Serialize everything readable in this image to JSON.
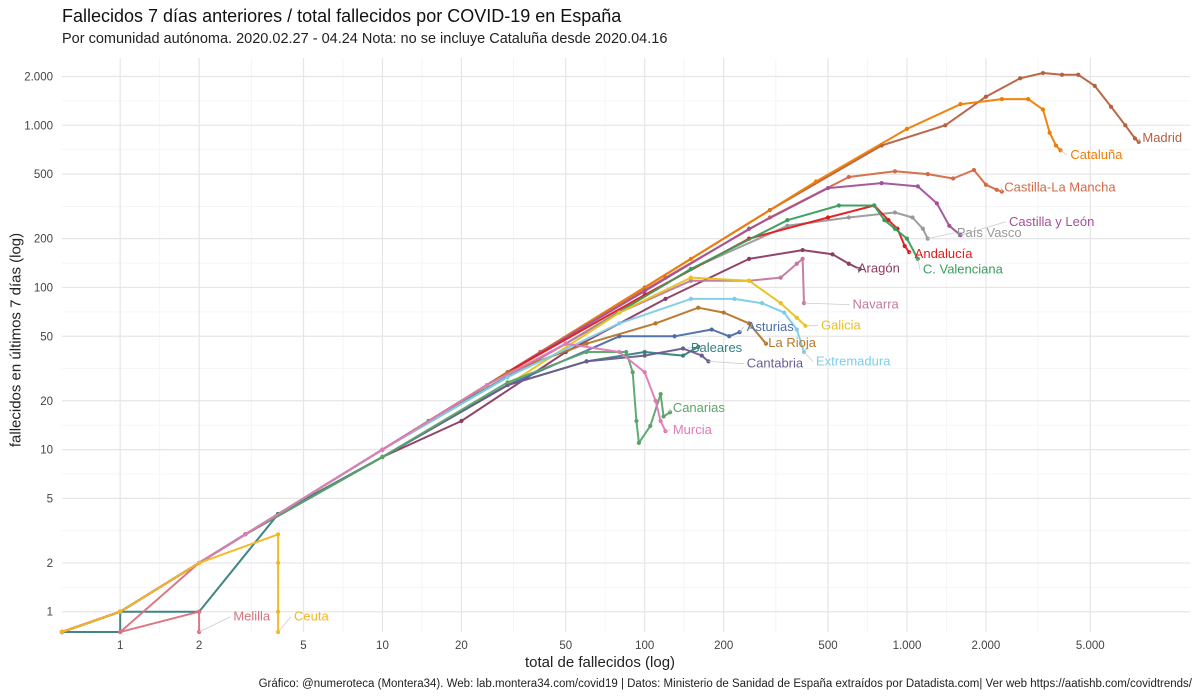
{
  "title": "Fallecidos 7 días anteriores / total fallecidos por COVID-19 en España",
  "subtitle": "Por comunidad autónoma. 2020.02.27 - 04.24 Nota: no se incluye Cataluña desde 2020.04.16",
  "caption": "Gráfico: @numeroteca (Montera34). Web: lab.montera34.com/covid19 | Datos: Ministerio de Sanidad de España extraídos por Datadista.com| Ver web https://aatishb.com/covidtrends/",
  "chart_data": {
    "type": "line",
    "title": "Fallecidos 7 días anteriores / total fallecidos por COVID-19 en España",
    "subtitle": "Por comunidad autónoma. 2020.02.27 - 04.24 Nota: no se incluye Cataluña desde 2020.04.16",
    "xlabel": "total de fallecidos (log)",
    "ylabel": "fallecidos en últimos 7 días (log)",
    "x_scale": "log",
    "y_scale": "log",
    "xlim": [
      0.6,
      12000
    ],
    "ylim": [
      0.75,
      2600
    ],
    "x_ticks": [
      1,
      2,
      5,
      10,
      20,
      50,
      100,
      200,
      500,
      1000,
      2000,
      5000
    ],
    "x_tick_labels": [
      "1",
      "2",
      "5",
      "10",
      "20",
      "50",
      "100",
      "200",
      "500",
      "1.000",
      "2.000",
      "5.000"
    ],
    "y_ticks": [
      1,
      2,
      5,
      10,
      20,
      50,
      100,
      200,
      500,
      1000,
      2000
    ],
    "y_tick_labels": [
      "1",
      "2",
      "5",
      "10",
      "20",
      "50",
      "100",
      "200",
      "500",
      "1.000",
      "2.000"
    ],
    "grid": true,
    "legend": "direct labels at line ends",
    "series": [
      {
        "name": "Madrid",
        "color": "#b5603f",
        "label_at": [
          7900,
          790
        ],
        "points": [
          [
            0.6,
            0.75
          ],
          [
            1,
            1
          ],
          [
            2,
            2
          ],
          [
            4,
            4
          ],
          [
            10,
            10
          ],
          [
            30,
            30
          ],
          [
            100,
            100
          ],
          [
            300,
            300
          ],
          [
            800,
            750
          ],
          [
            1400,
            1000
          ],
          [
            2000,
            1500
          ],
          [
            2700,
            1950
          ],
          [
            3300,
            2100
          ],
          [
            3900,
            2050
          ],
          [
            4500,
            2050
          ],
          [
            5200,
            1750
          ],
          [
            6000,
            1300
          ],
          [
            6800,
            1000
          ],
          [
            7400,
            830
          ],
          [
            7650,
            790
          ]
        ]
      },
      {
        "name": "Cataluña",
        "color": "#f07d02",
        "label_at": [
          4200,
          620
        ],
        "points": [
          [
            0.6,
            0.75
          ],
          [
            1,
            1
          ],
          [
            2,
            2
          ],
          [
            4,
            4
          ],
          [
            10,
            10
          ],
          [
            40,
            40
          ],
          [
            150,
            150
          ],
          [
            450,
            450
          ],
          [
            1000,
            950
          ],
          [
            1600,
            1350
          ],
          [
            2300,
            1450
          ],
          [
            2900,
            1450
          ],
          [
            3300,
            1250
          ],
          [
            3500,
            900
          ],
          [
            3700,
            750
          ],
          [
            3850,
            700
          ]
        ]
      },
      {
        "name": "Castilla-La Mancha",
        "color": "#d36a47",
        "label_at": [
          2350,
          390
        ],
        "points": [
          [
            0.6,
            0.75
          ],
          [
            1,
            1
          ],
          [
            3,
            3
          ],
          [
            10,
            10
          ],
          [
            40,
            40
          ],
          [
            120,
            115
          ],
          [
            300,
            270
          ],
          [
            600,
            480
          ],
          [
            900,
            520
          ],
          [
            1200,
            500
          ],
          [
            1500,
            470
          ],
          [
            1800,
            530
          ],
          [
            2000,
            430
          ],
          [
            2200,
            400
          ],
          [
            2300,
            390
          ]
        ]
      },
      {
        "name": "Castilla y León",
        "color": "#a2519b",
        "label_at": [
          2450,
          240
        ],
        "points": [
          [
            0.6,
            0.75
          ],
          [
            1,
            1
          ],
          [
            3,
            3
          ],
          [
            10,
            10
          ],
          [
            30,
            30
          ],
          [
            100,
            95
          ],
          [
            250,
            230
          ],
          [
            500,
            410
          ],
          [
            800,
            440
          ],
          [
            1100,
            420
          ],
          [
            1300,
            330
          ],
          [
            1450,
            240
          ],
          [
            1600,
            210
          ]
        ]
      },
      {
        "name": "País Vasco",
        "color": "#999999",
        "label_at": [
          1550,
          205
        ],
        "points": [
          [
            0.6,
            0.75
          ],
          [
            1,
            1
          ],
          [
            4,
            4
          ],
          [
            15,
            15
          ],
          [
            50,
            45
          ],
          [
            150,
            130
          ],
          [
            350,
            240
          ],
          [
            600,
            270
          ],
          [
            900,
            290
          ],
          [
            1050,
            270
          ],
          [
            1150,
            230
          ],
          [
            1200,
            200
          ]
        ]
      },
      {
        "name": "Andalucía",
        "color": "#e31a1c",
        "label_at": [
          1070,
          152
        ],
        "points": [
          [
            0.6,
            0.75
          ],
          [
            1,
            1
          ],
          [
            3,
            3
          ],
          [
            10,
            10
          ],
          [
            30,
            30
          ],
          [
            100,
            90
          ],
          [
            250,
            200
          ],
          [
            500,
            270
          ],
          [
            750,
            320
          ],
          [
            850,
            260
          ],
          [
            920,
            230
          ],
          [
            980,
            180
          ],
          [
            1020,
            165
          ]
        ]
      },
      {
        "name": "C. Valenciana",
        "color": "#3a9c5c",
        "label_at": [
          1150,
          122
        ],
        "points": [
          [
            0.6,
            0.75
          ],
          [
            1,
            1
          ],
          [
            4,
            4
          ],
          [
            15,
            15
          ],
          [
            50,
            45
          ],
          [
            150,
            130
          ],
          [
            350,
            260
          ],
          [
            550,
            320
          ],
          [
            750,
            320
          ],
          [
            820,
            260
          ],
          [
            900,
            230
          ],
          [
            1000,
            200
          ],
          [
            1100,
            150
          ]
        ]
      },
      {
        "name": "Aragón",
        "color": "#8b3a62",
        "label_at": [
          650,
          124
        ],
        "points": [
          [
            0.6,
            0.75
          ],
          [
            1,
            1
          ],
          [
            4,
            4
          ],
          [
            10,
            9
          ],
          [
            20,
            15
          ],
          [
            50,
            40
          ],
          [
            120,
            85
          ],
          [
            250,
            150
          ],
          [
            400,
            170
          ],
          [
            520,
            160
          ],
          [
            600,
            140
          ],
          [
            660,
            130
          ]
        ]
      },
      {
        "name": "Navarra",
        "color": "#c2799f",
        "label_at": [
          620,
          74
        ],
        "points": [
          [
            0.6,
            0.75
          ],
          [
            1,
            1
          ],
          [
            3,
            3
          ],
          [
            10,
            10
          ],
          [
            30,
            28
          ],
          [
            80,
            70
          ],
          [
            150,
            110
          ],
          [
            250,
            110
          ],
          [
            330,
            115
          ],
          [
            380,
            140
          ],
          [
            400,
            150
          ],
          [
            405,
            80
          ]
        ]
      },
      {
        "name": "Galicia",
        "color": "#e8c21f",
        "label_at": [
          470,
          55
        ],
        "points": [
          [
            0.6,
            0.75
          ],
          [
            1,
            1
          ],
          [
            3,
            3
          ],
          [
            10,
            9
          ],
          [
            30,
            25
          ],
          [
            80,
            70
          ],
          [
            150,
            115
          ],
          [
            250,
            110
          ],
          [
            330,
            80
          ],
          [
            380,
            65
          ],
          [
            410,
            58
          ]
        ]
      },
      {
        "name": "Asturias",
        "color": "#4b6da7",
        "label_at": [
          245,
          54
        ],
        "points": [
          [
            0.6,
            0.75
          ],
          [
            1,
            1
          ],
          [
            3,
            3
          ],
          [
            10,
            9
          ],
          [
            30,
            25
          ],
          [
            80,
            50
          ],
          [
            130,
            50
          ],
          [
            180,
            55
          ],
          [
            210,
            50
          ],
          [
            230,
            53
          ]
        ]
      },
      {
        "name": "La Rioja",
        "color": "#b5762a",
        "label_at": [
          296,
          43
        ],
        "points": [
          [
            0.6,
            0.75
          ],
          [
            1,
            1
          ],
          [
            3,
            3
          ],
          [
            10,
            10
          ],
          [
            30,
            30
          ],
          [
            60,
            45
          ],
          [
            110,
            60
          ],
          [
            160,
            75
          ],
          [
            200,
            70
          ],
          [
            250,
            60
          ],
          [
            290,
            45
          ]
        ]
      },
      {
        "name": "Extremadura",
        "color": "#7ecce8",
        "label_at": [
          450,
          33
        ],
        "points": [
          [
            0.6,
            0.75
          ],
          [
            1,
            1
          ],
          [
            3,
            3
          ],
          [
            10,
            10
          ],
          [
            30,
            28
          ],
          [
            80,
            60
          ],
          [
            150,
            85
          ],
          [
            220,
            85
          ],
          [
            280,
            80
          ],
          [
            340,
            70
          ],
          [
            380,
            55
          ],
          [
            405,
            40
          ]
        ]
      },
      {
        "name": "Baleares",
        "color": "#35807d",
        "label_at": [
          150,
          40
        ],
        "points": [
          [
            0.6,
            0.75
          ],
          [
            1,
            0.75
          ],
          [
            1,
            1
          ],
          [
            2,
            1
          ],
          [
            4,
            4
          ],
          [
            10,
            9
          ],
          [
            30,
            25
          ],
          [
            60,
            35
          ],
          [
            100,
            40
          ],
          [
            140,
            38
          ],
          [
            160,
            43
          ]
        ]
      },
      {
        "name": "Cantabria",
        "color": "#6b5d8f",
        "label_at": [
          245,
          32
        ],
        "points": [
          [
            0.6,
            0.75
          ],
          [
            1,
            1
          ],
          [
            3,
            3
          ],
          [
            10,
            9
          ],
          [
            30,
            25
          ],
          [
            60,
            35
          ],
          [
            100,
            38
          ],
          [
            140,
            42
          ],
          [
            165,
            38
          ],
          [
            175,
            35
          ]
        ]
      },
      {
        "name": "Canarias",
        "color": "#58a56a",
        "label_at": [
          128,
          17
        ],
        "points": [
          [
            0.6,
            0.75
          ],
          [
            1,
            1
          ],
          [
            3,
            3
          ],
          [
            10,
            9
          ],
          [
            30,
            26
          ],
          [
            60,
            40
          ],
          [
            85,
            40
          ],
          [
            90,
            30
          ],
          [
            93,
            15
          ],
          [
            95,
            11
          ],
          [
            105,
            14
          ],
          [
            115,
            22
          ],
          [
            118,
            16
          ],
          [
            125,
            17
          ]
        ]
      },
      {
        "name": "Murcia",
        "color": "#e07ab8",
        "label_at": [
          128,
          12.5
        ],
        "points": [
          [
            0.6,
            0.75
          ],
          [
            1,
            1
          ],
          [
            3,
            3
          ],
          [
            10,
            10
          ],
          [
            25,
            25
          ],
          [
            50,
            45
          ],
          [
            80,
            40
          ],
          [
            100,
            30
          ],
          [
            110,
            20
          ],
          [
            115,
            15
          ],
          [
            120,
            13
          ]
        ]
      },
      {
        "name": "Melilla",
        "color": "#d8727e",
        "label_at": [
          2.7,
          0.88
        ],
        "points": [
          [
            0.6,
            0.75
          ],
          [
            1,
            1
          ],
          [
            2,
            2
          ],
          [
            1,
            0.75
          ],
          [
            2,
            1
          ],
          [
            2,
            0.75
          ]
        ]
      },
      {
        "name": "Ceuta",
        "color": "#f3b61f",
        "label_at": [
          4.6,
          0.88
        ],
        "points": [
          [
            0.6,
            0.75
          ],
          [
            1,
            1
          ],
          [
            2,
            2
          ],
          [
            4,
            3
          ],
          [
            4,
            2
          ],
          [
            4,
            1
          ],
          [
            4,
            0.75
          ]
        ]
      }
    ]
  }
}
